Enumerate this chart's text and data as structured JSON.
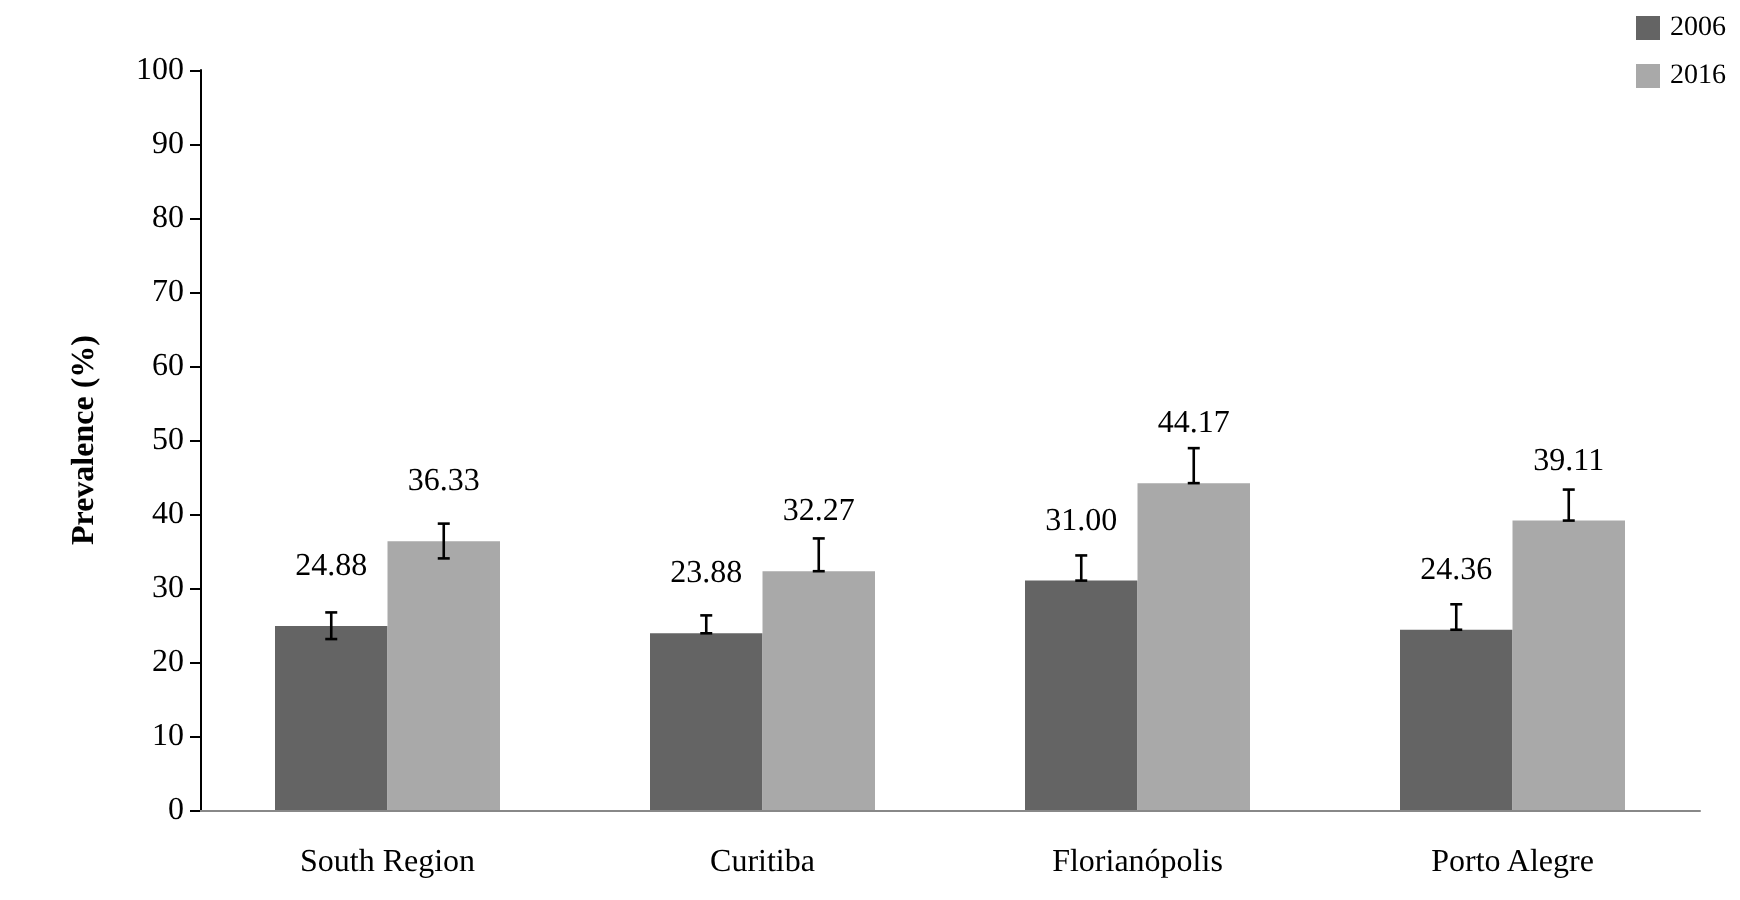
{
  "chart_data": {
    "type": "bar",
    "ylabel": "Prevalence (%)",
    "categories": [
      "South Region",
      "Curitiba",
      "Florianópolis",
      "Porto Alegre"
    ],
    "series": [
      {
        "name": "2006",
        "color": "#646464",
        "values": [
          24.88,
          23.88,
          31.0,
          24.36
        ],
        "value_labels": [
          "24.88",
          "23.88",
          "31.00",
          "24.36"
        ],
        "errors": [
          [
            23.1,
            26.7
          ],
          [
            23.88,
            26.3
          ],
          [
            31.0,
            34.4
          ],
          [
            24.36,
            27.8
          ]
        ]
      },
      {
        "name": "2016",
        "color": "#a9a9a9",
        "values": [
          36.33,
          32.27,
          44.17,
          39.11
        ],
        "value_labels": [
          "36.33",
          "32.27",
          "44.17",
          "39.11"
        ],
        "errors": [
          [
            34.0,
            38.7
          ],
          [
            32.27,
            36.7
          ],
          [
            44.17,
            48.9
          ],
          [
            39.11,
            43.3
          ]
        ]
      }
    ],
    "ylim": [
      0,
      100
    ],
    "yticks": [
      0,
      10,
      20,
      30,
      40,
      50,
      60,
      70,
      80,
      90,
      100
    ],
    "legend": "top right",
    "grid": false
  }
}
